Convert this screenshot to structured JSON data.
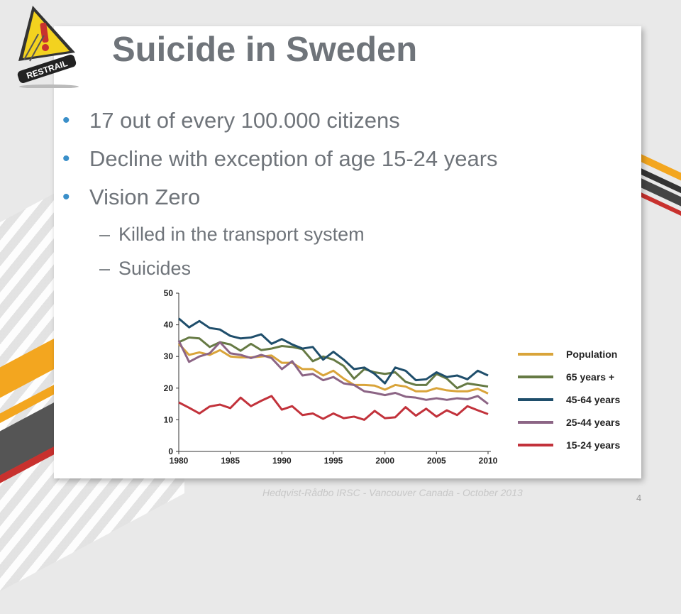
{
  "slide": {
    "title": "Suicide in Sweden",
    "bullets": [
      "17 out of every 100.000 citizens",
      "Decline with exception of age 15-24 years",
      "Vision Zero"
    ],
    "sub_bullets": [
      "Killed in the transport system",
      "Suicides"
    ],
    "bullet_marker": "•",
    "dash_marker": "–",
    "logo_text": "RESTRAIL",
    "footer": "Hedqvist-Rådbo IRSC - Vancouver Canada - October 2013",
    "page_number": "4"
  },
  "colors": {
    "accent_yellow": "#f3a61f",
    "accent_red": "#c8312e",
    "title_gray": "#6f747a",
    "bullet_blue": "#3a8fc9"
  },
  "chart_data": {
    "type": "line",
    "x": [
      1980,
      1981,
      1982,
      1983,
      1984,
      1985,
      1986,
      1987,
      1988,
      1989,
      1990,
      1991,
      1992,
      1993,
      1994,
      1995,
      1996,
      1997,
      1998,
      1999,
      2000,
      2001,
      2002,
      2003,
      2004,
      2005,
      2006,
      2007,
      2008,
      2009,
      2010
    ],
    "ylim": [
      0,
      50
    ],
    "xlim": [
      1980,
      2010
    ],
    "yticks": [
      0,
      10,
      20,
      30,
      40,
      50
    ],
    "xticks": [
      1980,
      1985,
      1990,
      1995,
      2000,
      2005,
      2010
    ],
    "grid": false,
    "legend_position": "right",
    "series": [
      {
        "name": "Population",
        "color": "#d9a43a",
        "values": [
          34,
          30.5,
          31.3,
          30.5,
          32,
          30,
          29.7,
          29.7,
          30,
          30.3,
          28,
          28,
          26,
          26,
          24,
          25.5,
          23,
          21,
          21,
          20.8,
          19.5,
          21,
          20.5,
          19,
          19,
          20,
          19.3,
          19,
          19,
          19.8,
          18.3
        ]
      },
      {
        "name": "65 years +",
        "color": "#667a44",
        "values": [
          34.5,
          36,
          35.7,
          33,
          34.5,
          33.8,
          31.8,
          34,
          32,
          32.5,
          33.3,
          33,
          32.3,
          28.5,
          30,
          29,
          27,
          23,
          26,
          25,
          24.5,
          25,
          22,
          21,
          21,
          24.5,
          23,
          20,
          21.5,
          21,
          20.5
        ]
      },
      {
        "name": "45-64 years",
        "color": "#1f4e6b",
        "values": [
          42,
          39.2,
          41.2,
          39,
          38.5,
          36.5,
          35.7,
          36,
          37,
          34,
          35.5,
          33.8,
          32.5,
          33,
          29,
          31.5,
          29,
          26,
          26.5,
          24.5,
          21.5,
          26.5,
          25.5,
          22.5,
          22.8,
          25,
          23.5,
          24,
          22.8,
          25.5,
          24
        ]
      },
      {
        "name": "25-44 years",
        "color": "#8c6585",
        "values": [
          35,
          28.3,
          30,
          31,
          34.5,
          31,
          30.5,
          29.5,
          30.5,
          29.5,
          26,
          28.5,
          24,
          24.5,
          22.5,
          23.5,
          21.5,
          21,
          19,
          18.5,
          17.8,
          18.5,
          17.3,
          17,
          16.3,
          16.8,
          16.3,
          16.8,
          16.5,
          17.5,
          15
        ]
      },
      {
        "name": "15-24 years",
        "color": "#c2323b",
        "values": [
          15.5,
          13.8,
          12,
          14.2,
          14.8,
          13.7,
          17,
          14.3,
          16,
          17.5,
          13.2,
          14.3,
          11.5,
          12,
          10.3,
          12,
          10.5,
          11,
          10,
          12.8,
          10.5,
          10.8,
          14,
          11.3,
          13.5,
          11,
          13,
          11.5,
          14.3,
          13,
          11.8
        ]
      }
    ]
  }
}
